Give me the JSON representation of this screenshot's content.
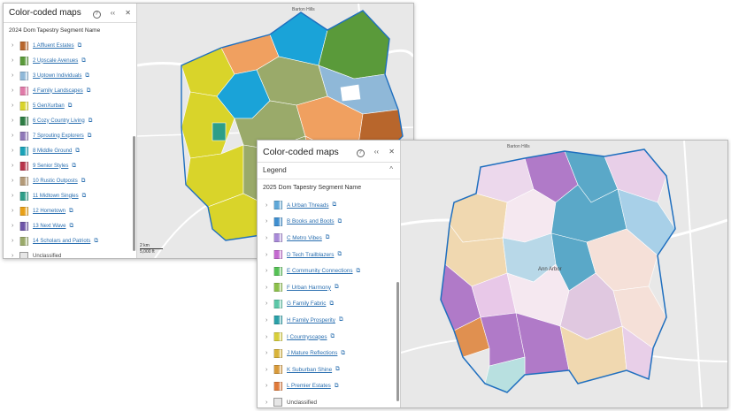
{
  "window1": {
    "title": "Color-coded maps",
    "subtitle": "2024 Dom Tapestry Segment Name",
    "map_label_top": "Barton Hills",
    "scale": {
      "km": "2 km",
      "ft": "5,000 ft"
    },
    "items": [
      {
        "label": "1 Affluent Estates",
        "color": "#b8662c"
      },
      {
        "label": "2 Upscale Avenues",
        "color": "#5a9a3a"
      },
      {
        "label": "3 Uptown Individuals",
        "color": "#8fb8d8"
      },
      {
        "label": "4 Family Landscapes",
        "color": "#e07aa8"
      },
      {
        "label": "5 GenXurban",
        "color": "#d9d42a"
      },
      {
        "label": "6 Cozy Country Living",
        "color": "#2e7d44"
      },
      {
        "label": "7 Sprouting Explorers",
        "color": "#8f78b8"
      },
      {
        "label": "8 Middle Ground",
        "color": "#1aa3b8"
      },
      {
        "label": "9 Senior Styles",
        "color": "#b8334a"
      },
      {
        "label": "10 Rustic Outposts",
        "color": "#b49a78"
      },
      {
        "label": "11 Midtown Singles",
        "color": "#2d9e88"
      },
      {
        "label": "12 Hometown",
        "color": "#e8a017"
      },
      {
        "label": "13 Next Wave",
        "color": "#6e55a8"
      },
      {
        "label": "14 Scholars and Patriots",
        "color": "#9aaa6a"
      }
    ],
    "unclassified": "Unclassified"
  },
  "window2": {
    "title": "Color-coded maps",
    "legend_label": "Legend",
    "subtitle": "2025 Dom Tapestry Segment Name",
    "map_label_top": "Barton Hills",
    "map_label_center": "Ann Arbor",
    "items": [
      {
        "label": "A Urban Threads",
        "color": "#5fa8d8"
      },
      {
        "label": "B Books and Boots",
        "color": "#3f8fd0"
      },
      {
        "label": "C Metro Vibes",
        "color": "#a98ad8"
      },
      {
        "label": "D Tech Trailblazers",
        "color": "#c46ad0"
      },
      {
        "label": "E Community Connections",
        "color": "#55c155"
      },
      {
        "label": "F Urban Harmony",
        "color": "#8cc04a"
      },
      {
        "label": "G Family Fabric",
        "color": "#5cc7a8"
      },
      {
        "label": "H Family Prosperity",
        "color": "#2aa0a8"
      },
      {
        "label": "I Countryscapes",
        "color": "#d8cf3a"
      },
      {
        "label": "J Mature Reflections",
        "color": "#d9b43a"
      },
      {
        "label": "K Suburban Shine",
        "color": "#d89a3a"
      },
      {
        "label": "L Premier Estates",
        "color": "#e07a3a"
      }
    ],
    "unclassified": "Unclassified"
  }
}
